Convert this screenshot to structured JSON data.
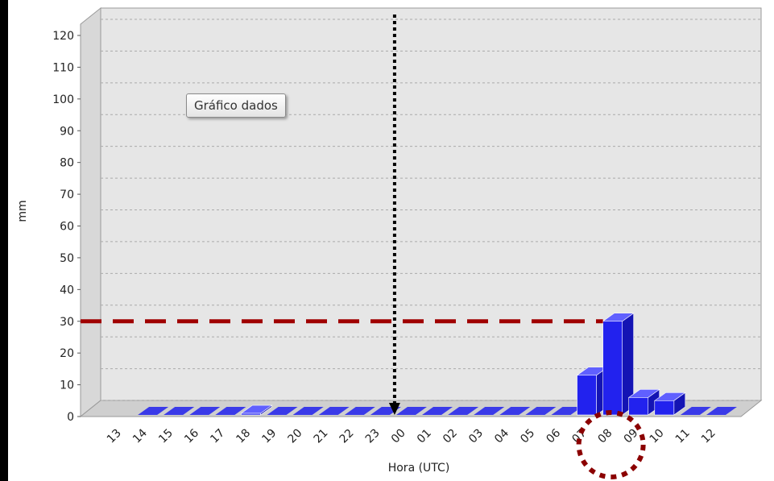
{
  "chart_data": {
    "type": "bar3d",
    "y_label": "mm",
    "x_label": "Hora (UTC)",
    "button": "Gráfico dados",
    "categories": [
      "13",
      "14",
      "15",
      "16",
      "17",
      "18",
      "19",
      "20",
      "21",
      "22",
      "23",
      "00",
      "01",
      "02",
      "03",
      "04",
      "05",
      "06",
      "07",
      "08",
      "09",
      "10",
      "11",
      "12"
    ],
    "values": [
      null,
      0,
      0,
      0,
      0.5,
      1,
      0,
      0,
      0,
      0,
      0,
      0,
      0,
      0,
      0,
      0,
      0,
      0,
      13,
      30,
      6,
      5,
      0,
      0
    ],
    "color": "#2222ee",
    "ylim": [
      0,
      120
    ],
    "yticks": [
      0,
      10,
      20,
      30,
      40,
      50,
      60,
      70,
      80,
      90,
      100,
      110,
      120
    ],
    "grid": true,
    "reference_line": 30,
    "marker_category": "00",
    "highlight_category": "08"
  }
}
